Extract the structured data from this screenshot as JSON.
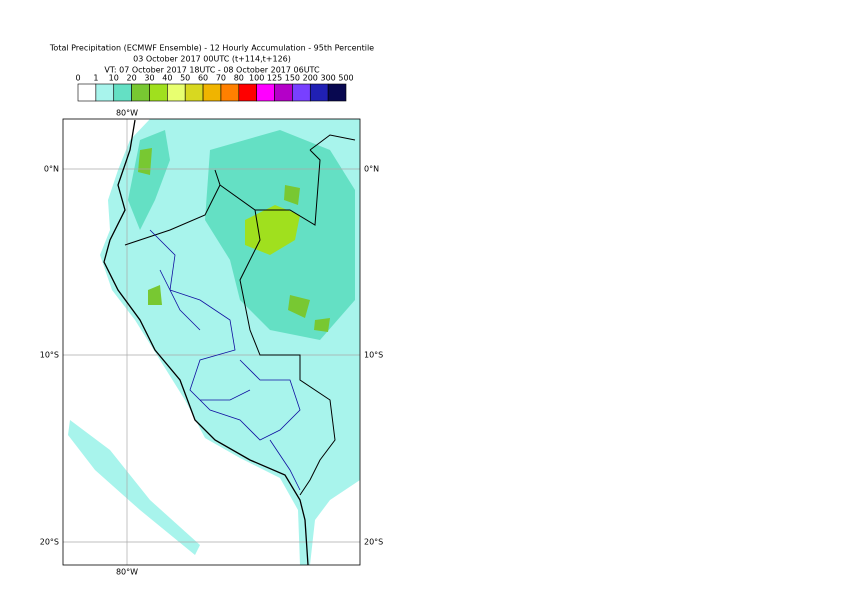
{
  "header": {
    "title": "Total Precipitation (ECMWF Ensemble) - 12 Hourly Accumulation - 95th Percentile",
    "run": "03 October 2017 00UTC (t+114,t+126)",
    "valid": "VT: 07 October 2017 18UTC - 08 October 2017 06UTC"
  },
  "legend": {
    "labels": [
      "0",
      "1",
      "10",
      "20",
      "30",
      "40",
      "50",
      "60",
      "70",
      "80",
      "100",
      "125",
      "150",
      "200",
      "300",
      "500"
    ],
    "colors": [
      "#ffffff",
      "#a8f4ec",
      "#64e0c4",
      "#78c832",
      "#a0e01e",
      "#e8ff70",
      "#d8d820",
      "#f0b400",
      "#ff8000",
      "#ff0000",
      "#ff00ff",
      "#b400c8",
      "#7840ff",
      "#2020b4",
      "#080850"
    ]
  },
  "map": {
    "lon_labels": [
      "80°W"
    ],
    "lat_labels": [
      "0°N",
      "10°S",
      "20°S"
    ]
  }
}
